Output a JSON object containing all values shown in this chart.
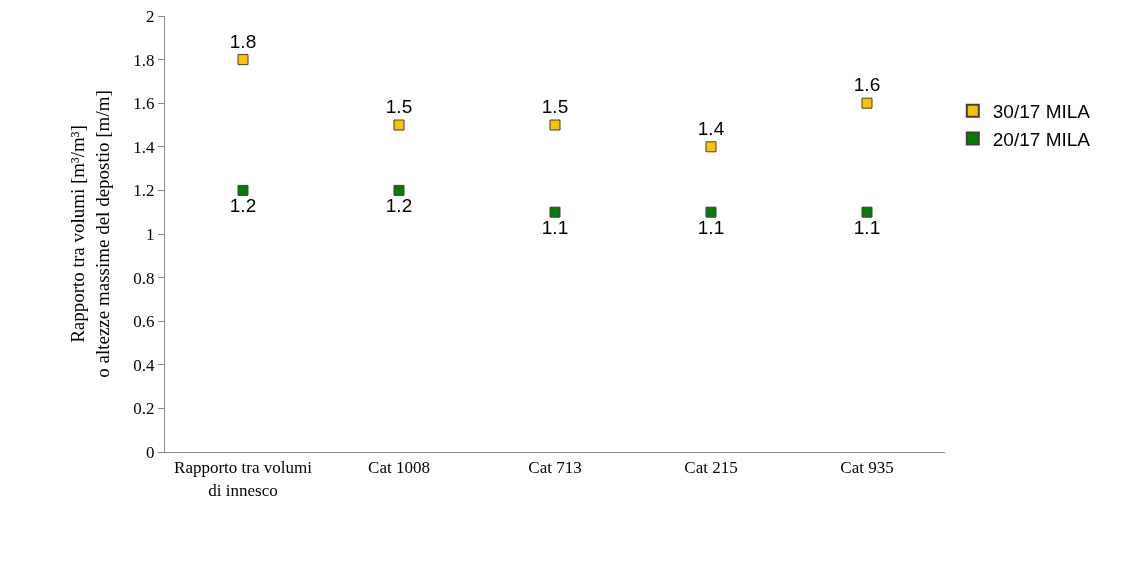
{
  "chart_data": {
    "type": "scatter",
    "ylabel": "Rapporto tra volumi [m³/m³]\no altezze massime del depostio [m/m]",
    "categories": [
      "Rapporto tra volumi di innesco",
      "Cat 1008",
      "Cat 713",
      "Cat 215",
      "Cat 935"
    ],
    "series": [
      {
        "name": "30/17 MILA",
        "color": "#ffc000",
        "values": [
          1.8,
          1.5,
          1.5,
          1.4,
          1.6
        ]
      },
      {
        "name": "20/17 MILA",
        "color": "#008000",
        "values": [
          1.2,
          1.2,
          1.1,
          1.1,
          1.1
        ]
      }
    ],
    "ylim": [
      0,
      2
    ],
    "yticks": [
      0,
      0.2,
      0.4,
      0.6,
      0.8,
      1,
      1.2,
      1.4,
      1.6,
      1.8,
      2
    ],
    "grid": false,
    "legend": "right",
    "marker": "square",
    "data_labels": true
  }
}
